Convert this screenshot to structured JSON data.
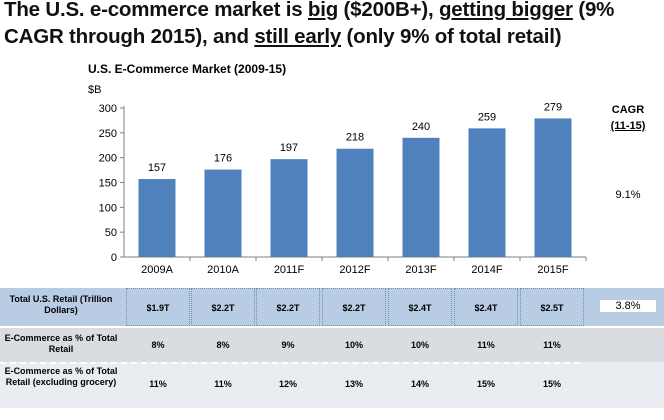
{
  "headline": {
    "line1_a": "The U.S. e-commerce market is ",
    "line1_b": "big",
    "line1_c": " ($200B+), ",
    "line1_d": "getting bigger",
    "line1_e": " (9%",
    "line2_a": "CAGR through 2015), and ",
    "line2_b": "still early",
    "line2_c": " (only 9% of total retail)"
  },
  "chart_data": {
    "type": "bar",
    "title": "U.S. E-Commerce Market (2009-15)",
    "ylabel": "$B",
    "categories": [
      "2009A",
      "2010A",
      "2011F",
      "2012F",
      "2013F",
      "2014F",
      "2015F"
    ],
    "values": [
      157,
      176,
      197,
      218,
      240,
      259,
      279
    ],
    "ylim": [
      0,
      300
    ],
    "yticks": [
      "0",
      "50",
      "100",
      "150",
      "200",
      "250",
      "300"
    ],
    "bar_color": "#4f81bd",
    "grid": false
  },
  "cagr": {
    "header": "CAGR",
    "sub": "(11-15)",
    "market_value": "9.1%",
    "retail_value": "3.8%"
  },
  "table": {
    "rows": [
      {
        "label": "Total U.S. Retail (Trillion Dollars)",
        "cells": [
          "$1.9T",
          "$2.2T",
          "$2.2T",
          "$2.2T",
          "$2.4T",
          "$2.4T",
          "$2.5T"
        ]
      },
      {
        "label": "E-Commerce as % of Total Retail",
        "cells": [
          "8%",
          "8%",
          "9%",
          "10%",
          "10%",
          "11%",
          "11%"
        ]
      },
      {
        "label": "E-Commerce as % of Total Retail (excluding grocery)",
        "cells": [
          "11%",
          "11%",
          "12%",
          "13%",
          "14%",
          "15%",
          "15%"
        ]
      }
    ]
  }
}
